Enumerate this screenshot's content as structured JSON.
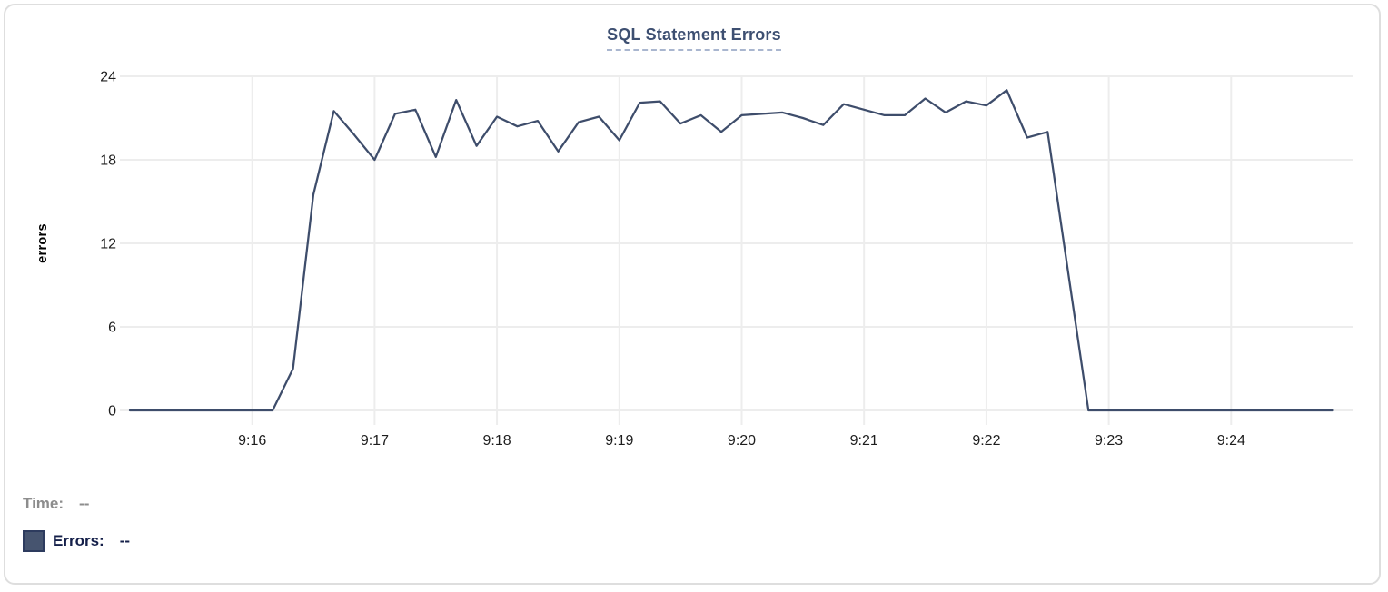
{
  "chart_data": {
    "type": "line",
    "title": "SQL Statement Errors",
    "xlabel": "",
    "ylabel": "errors",
    "ylim": [
      0,
      24
    ],
    "y_ticks": [
      0,
      6,
      12,
      18,
      24
    ],
    "x_range": [
      "9:15:00",
      "9:25:00"
    ],
    "x_ticks": [
      {
        "label": "9:16",
        "time": "9:16:00"
      },
      {
        "label": "9:17",
        "time": "9:17:00"
      },
      {
        "label": "9:18",
        "time": "9:18:00"
      },
      {
        "label": "9:19",
        "time": "9:19:00"
      },
      {
        "label": "9:20",
        "time": "9:20:00"
      },
      {
        "label": "9:21",
        "time": "9:21:00"
      },
      {
        "label": "9:22",
        "time": "9:22:00"
      },
      {
        "label": "9:23",
        "time": "9:23:00"
      },
      {
        "label": "9:24",
        "time": "9:24:00"
      }
    ],
    "grid": true,
    "legend_position": "bottom-left",
    "series": [
      {
        "name": "Errors",
        "color": "#3e4d6b",
        "x": [
          "9:15:00",
          "9:15:10",
          "9:15:20",
          "9:15:30",
          "9:15:40",
          "9:15:50",
          "9:16:00",
          "9:16:10",
          "9:16:20",
          "9:16:30",
          "9:16:40",
          "9:16:50",
          "9:17:00",
          "9:17:10",
          "9:17:20",
          "9:17:30",
          "9:17:40",
          "9:17:50",
          "9:18:00",
          "9:18:10",
          "9:18:20",
          "9:18:30",
          "9:18:40",
          "9:18:50",
          "9:19:00",
          "9:19:10",
          "9:19:20",
          "9:19:30",
          "9:19:40",
          "9:19:50",
          "9:20:00",
          "9:20:10",
          "9:20:20",
          "9:20:30",
          "9:20:40",
          "9:20:50",
          "9:21:00",
          "9:21:10",
          "9:21:20",
          "9:21:30",
          "9:21:40",
          "9:21:50",
          "9:22:00",
          "9:22:10",
          "9:22:20",
          "9:22:30",
          "9:22:40",
          "9:22:50",
          "9:23:00",
          "9:23:10",
          "9:23:20",
          "9:23:30",
          "9:23:40",
          "9:23:50",
          "9:24:00",
          "9:24:10",
          "9:24:20",
          "9:24:30",
          "9:24:40",
          "9:24:50"
        ],
        "values": [
          0,
          0,
          0,
          0,
          0,
          0,
          0,
          0,
          3,
          15.5,
          21.5,
          19.8,
          18,
          21.3,
          21.6,
          18.2,
          22.3,
          19,
          21.1,
          20.4,
          20.8,
          18.6,
          20.7,
          21.1,
          19.4,
          22.1,
          22.2,
          20.6,
          21.2,
          20,
          21.2,
          21.3,
          21.4,
          21,
          20.5,
          22,
          21.6,
          21.2,
          21.2,
          22.4,
          21.4,
          22.2,
          21.9,
          23,
          19.6,
          20,
          10,
          0,
          0,
          0,
          0,
          0,
          0,
          0,
          0,
          0,
          0,
          0,
          0,
          0
        ]
      }
    ]
  },
  "tooltip": {
    "time_label": "Time:",
    "time_value": "--",
    "errors_label": "Errors:",
    "errors_value": "--",
    "swatch_color": "#46546f"
  }
}
